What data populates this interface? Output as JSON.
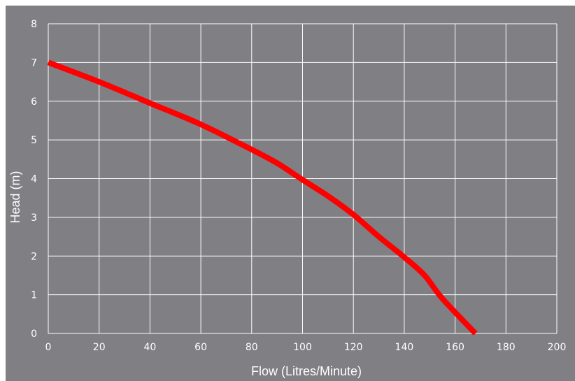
{
  "chart_data": {
    "type": "line",
    "xlabel": "Flow (Litres/Minute)",
    "ylabel": "Head (m)",
    "xlim": [
      0,
      200
    ],
    "ylim": [
      0,
      8
    ],
    "x_ticks": [
      "0",
      "20",
      "40",
      "60",
      "80",
      "100",
      "120",
      "140",
      "160",
      "180",
      "200"
    ],
    "y_ticks": [
      "0",
      "1",
      "2",
      "3",
      "4",
      "5",
      "6",
      "7",
      "8"
    ],
    "grid": true,
    "series": [
      {
        "x": [
          0,
          20,
          40,
          60,
          80,
          90,
          100,
          110,
          120,
          130,
          140,
          148,
          155,
          168
        ],
        "y": [
          7.0,
          6.5,
          5.95,
          5.4,
          4.75,
          4.4,
          3.97,
          3.55,
          3.07,
          2.5,
          1.97,
          1.5,
          0.9,
          0.0
        ]
      }
    ],
    "colors": {
      "background": "#7f7f84",
      "grid": "#ffffff",
      "line": "#ff0000"
    }
  }
}
